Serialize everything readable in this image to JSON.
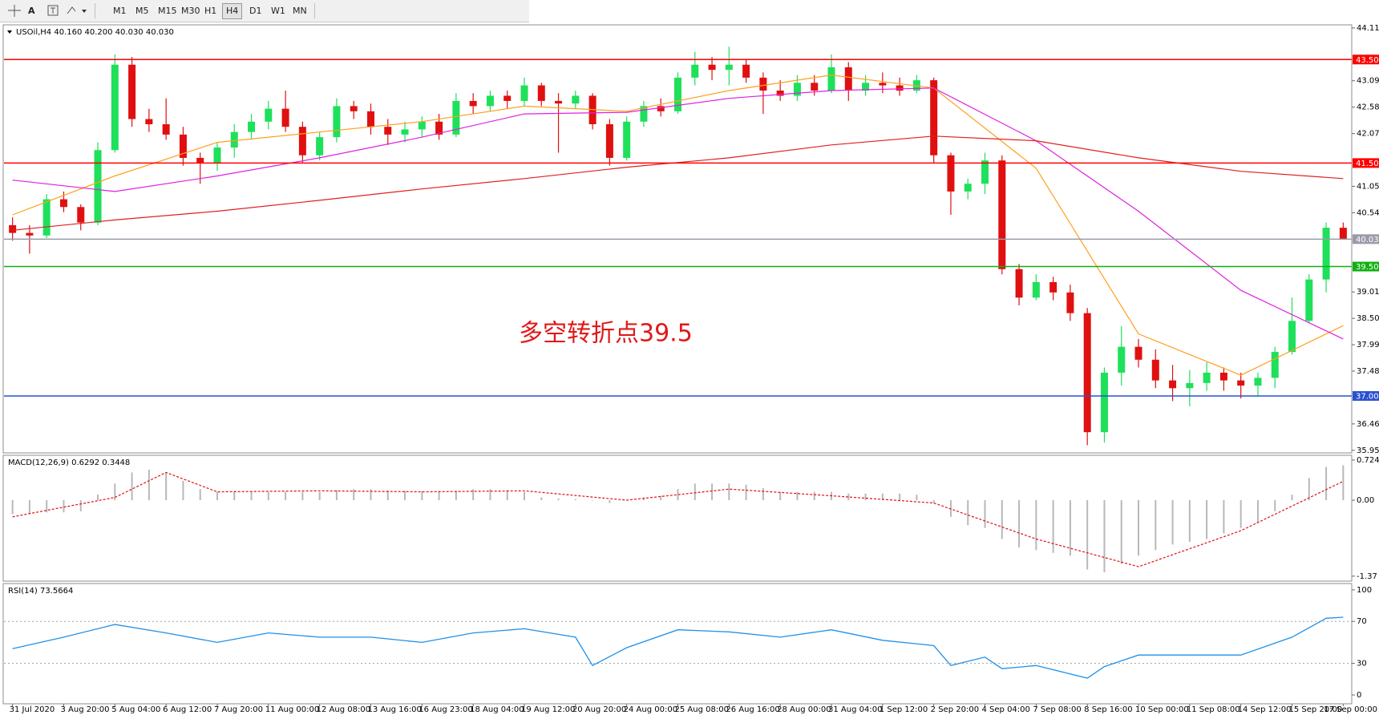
{
  "toolbar": {
    "tools": [
      "A"
    ],
    "timeframes": [
      "M1",
      "M5",
      "M15",
      "M30",
      "H1",
      "H4",
      "D1",
      "W1",
      "MN"
    ],
    "active": "H4"
  },
  "chart_data": [
    {
      "type": "candlestick",
      "title": "USOil,H4 40.160 40.200 40.030 40.030",
      "annotation": "多空转折点39.5",
      "categories": [
        "31 Jul 2020",
        null,
        null,
        "3 Aug 20:00",
        null,
        null,
        "5 Aug 04:00",
        null,
        null,
        "6 Aug 12:00",
        null,
        null,
        "7 Aug 20:00",
        null,
        null,
        "11 Aug 00:00",
        null,
        null,
        "12 Aug 08:00",
        null,
        null,
        "13 Aug 16:00",
        null,
        null,
        "16 Aug 23:00",
        null,
        null,
        "18 Aug 04:00",
        null,
        null,
        "19 Aug 12:00",
        null,
        null,
        "20 Aug 20:00",
        null,
        null,
        "24 Aug 00:00",
        null,
        null,
        "25 Aug 08:00",
        null,
        null,
        "26 Aug 16:00",
        null,
        null,
        "28 Aug 00:00",
        null,
        null,
        "31 Aug 04:00",
        null,
        null,
        "1 Sep 12:00",
        null,
        null,
        "2 Sep 20:00",
        null,
        null,
        "4 Sep 04:00",
        null,
        null,
        "7 Sep 08:00",
        null,
        null,
        "8 Sep 16:00",
        null,
        null,
        "10 Sep 00:00",
        null,
        null,
        "11 Sep 08:00",
        null,
        null,
        "14 Sep 12:00",
        null,
        null,
        "15 Sep 20:00",
        null,
        null,
        "17 Sep 00:00"
      ],
      "open": [
        40.3,
        40.15,
        40.1,
        40.8,
        40.65,
        40.35,
        41.75,
        43.4,
        42.35,
        42.25,
        42.05,
        41.6,
        41.5,
        41.8,
        42.1,
        42.3,
        42.55,
        42.2,
        41.65,
        42.0,
        42.6,
        42.5,
        42.2,
        42.05,
        42.15,
        42.3,
        42.05,
        42.7,
        42.6,
        42.8,
        42.7,
        43.0,
        42.7,
        42.65,
        42.8,
        42.25,
        41.6,
        42.3,
        42.6,
        42.5,
        43.15,
        43.4,
        43.3,
        43.4,
        43.15,
        42.9,
        42.8,
        43.05,
        42.9,
        43.35,
        42.9,
        43.05,
        43.0,
        42.9,
        43.1,
        41.65,
        40.95,
        41.1,
        41.55,
        39.45,
        38.9,
        39.2,
        39.0,
        38.6,
        36.3,
        37.45,
        37.95,
        37.7,
        37.3,
        37.15,
        37.25,
        37.45,
        37.3,
        37.2,
        37.35,
        37.85,
        38.45,
        39.25,
        40.25
      ],
      "high": [
        40.45,
        40.3,
        40.9,
        40.95,
        40.7,
        41.9,
        43.6,
        43.55,
        42.55,
        42.75,
        42.2,
        41.7,
        41.9,
        42.25,
        42.45,
        42.7,
        42.9,
        42.3,
        42.1,
        42.75,
        42.7,
        42.65,
        42.35,
        42.3,
        42.4,
        42.45,
        42.85,
        42.85,
        42.9,
        42.9,
        43.15,
        43.05,
        42.85,
        42.9,
        42.85,
        42.35,
        42.4,
        42.7,
        42.75,
        43.25,
        43.65,
        43.55,
        43.75,
        43.5,
        43.25,
        43.1,
        43.2,
        43.2,
        43.6,
        43.45,
        43.2,
        43.25,
        43.15,
        43.2,
        43.15,
        41.7,
        41.2,
        41.7,
        41.65,
        39.55,
        39.35,
        39.3,
        39.15,
        38.7,
        37.55,
        38.35,
        38.1,
        37.9,
        37.6,
        37.5,
        37.65,
        37.55,
        37.45,
        37.45,
        37.95,
        38.9,
        39.35,
        40.35,
        40.35
      ],
      "low": [
        40.0,
        39.75,
        40.05,
        40.55,
        40.2,
        40.3,
        41.7,
        42.2,
        42.1,
        41.95,
        41.45,
        41.1,
        41.35,
        41.6,
        41.95,
        42.15,
        42.1,
        41.5,
        41.55,
        41.9,
        42.35,
        42.05,
        41.85,
        41.9,
        42.0,
        41.95,
        42.0,
        42.45,
        42.5,
        42.55,
        42.6,
        42.6,
        41.7,
        42.55,
        42.15,
        41.45,
        41.55,
        42.2,
        42.4,
        42.45,
        43.0,
        43.1,
        43.0,
        43.05,
        42.45,
        42.7,
        42.7,
        42.8,
        42.85,
        42.7,
        42.8,
        42.85,
        42.8,
        42.85,
        41.5,
        40.5,
        40.8,
        40.9,
        39.35,
        38.75,
        38.85,
        38.85,
        38.45,
        36.05,
        36.1,
        37.2,
        37.55,
        37.15,
        36.9,
        36.8,
        37.1,
        37.1,
        36.95,
        37.0,
        37.15,
        37.8,
        38.4,
        39.0,
        40.03
      ],
      "close": [
        40.15,
        40.1,
        40.8,
        40.65,
        40.35,
        41.75,
        43.4,
        42.35,
        42.25,
        42.05,
        41.6,
        41.5,
        41.8,
        42.1,
        42.3,
        42.55,
        42.2,
        41.65,
        42.0,
        42.6,
        42.5,
        42.2,
        42.05,
        42.15,
        42.3,
        42.05,
        42.7,
        42.6,
        42.8,
        42.7,
        43.0,
        42.7,
        42.65,
        42.8,
        42.25,
        41.6,
        42.3,
        42.6,
        42.5,
        43.15,
        43.4,
        43.3,
        43.4,
        43.15,
        42.9,
        42.8,
        43.05,
        42.9,
        43.35,
        42.9,
        43.05,
        43.0,
        42.9,
        43.1,
        41.65,
        40.95,
        41.1,
        41.55,
        39.45,
        38.9,
        39.2,
        39.0,
        38.6,
        36.3,
        37.45,
        37.95,
        37.7,
        37.3,
        37.15,
        37.25,
        37.45,
        37.3,
        37.2,
        37.35,
        37.85,
        38.45,
        39.25,
        40.25,
        40.03
      ],
      "up_color": "#1ee05a",
      "down_color": "#e01010",
      "series": [
        {
          "color": "#ffa020",
          "x": [
            0,
            6,
            12,
            18,
            24,
            30,
            36,
            42,
            48,
            54,
            60,
            66,
            72,
            78
          ],
          "values": [
            40.5,
            41.25,
            41.9,
            42.1,
            42.3,
            42.6,
            42.5,
            42.9,
            43.2,
            42.95,
            41.4,
            38.2,
            37.4,
            38.36
          ]
        },
        {
          "color": "#e020e0",
          "x": [
            0,
            6,
            12,
            18,
            24,
            30,
            36,
            42,
            48,
            54,
            60,
            66,
            72,
            78
          ],
          "values": [
            41.17,
            40.95,
            41.25,
            41.6,
            42.0,
            42.45,
            42.48,
            42.75,
            42.9,
            42.95,
            41.93,
            40.57,
            39.04,
            38.1
          ]
        },
        {
          "color": "#e02020",
          "x": [
            0,
            6,
            12,
            18,
            24,
            30,
            36,
            42,
            48,
            54,
            60,
            66,
            72,
            78
          ],
          "values": [
            40.2,
            40.4,
            40.57,
            40.78,
            41.0,
            41.2,
            41.42,
            41.6,
            41.85,
            42.02,
            41.93,
            41.6,
            41.34,
            41.2
          ]
        }
      ],
      "hlines": [
        {
          "value": 43.5,
          "label": "43.50",
          "color": "#ff0000"
        },
        {
          "value": 41.5,
          "label": "41.50",
          "color": "#ff0000"
        },
        {
          "value": 40.03,
          "label": "40.03",
          "color": "#9a9aa8"
        },
        {
          "value": 39.5,
          "label": "39.50",
          "color": "#10b010"
        },
        {
          "value": 37.0,
          "label": "37.00",
          "color": "#2a50d0"
        }
      ],
      "ylim": [
        35.9,
        44.17
      ],
      "yticks": [
        44.11,
        43.09,
        42.58,
        42.07,
        41.05,
        40.54,
        39.01,
        {
          "value": 38.5,
          "label": "38.50"
        },
        37.99,
        37.48,
        36.46,
        35.95
      ]
    },
    {
      "type": "bar",
      "title": "MACD(12,26,9) 0.6292 0.3448",
      "color": "#b8b8b8",
      "values": [
        -0.25,
        -0.25,
        -0.22,
        -0.22,
        -0.2,
        0.1,
        0.3,
        0.5,
        0.55,
        0.5,
        0.35,
        0.2,
        0.15,
        0.15,
        0.15,
        0.15,
        0.15,
        0.15,
        0.15,
        0.18,
        0.2,
        0.2,
        0.18,
        0.17,
        0.16,
        0.15,
        0.17,
        0.2,
        0.2,
        0.18,
        0.15,
        0.05,
        0.03,
        0.02,
        0.0,
        -0.05,
        0.0,
        0.05,
        0.08,
        0.2,
        0.3,
        0.3,
        0.3,
        0.28,
        0.22,
        0.15,
        0.15,
        0.15,
        0.15,
        0.12,
        0.12,
        0.12,
        0.12,
        0.1,
        -0.05,
        -0.3,
        -0.45,
        -0.5,
        -0.7,
        -0.85,
        -0.9,
        -0.95,
        -1.0,
        -1.25,
        -1.3,
        -1.15,
        -1.0,
        -0.9,
        -0.8,
        -0.75,
        -0.7,
        -0.6,
        -0.5,
        -0.4,
        -0.2,
        0.1,
        0.4,
        0.6,
        0.63
      ],
      "series": [
        {
          "color": "#e01010",
          "style": "dotted",
          "x": [
            0,
            6,
            9,
            12,
            18,
            24,
            30,
            36,
            42,
            48,
            54,
            60,
            66,
            72,
            78
          ],
          "values": [
            -0.3,
            0.05,
            0.5,
            0.15,
            0.17,
            0.15,
            0.17,
            0.0,
            0.2,
            0.08,
            -0.05,
            -0.7,
            -1.2,
            -0.55,
            0.34
          ]
        }
      ],
      "ylim": [
        -1.46,
        0.81
      ],
      "yticks": [
        0.724,
        {
          "value": 0,
          "label": "0.00"
        },
        -1.37
      ]
    },
    {
      "type": "line",
      "title": "RSI(14) 73.5664",
      "color": "#2090e8",
      "x": [
        0,
        3,
        6,
        9,
        12,
        15,
        18,
        21,
        24,
        27,
        30,
        33,
        34,
        36,
        39,
        42,
        45,
        48,
        51,
        54,
        55,
        57,
        58,
        60,
        63,
        64,
        66,
        69,
        72,
        75,
        77,
        78
      ],
      "values": [
        44,
        55,
        67,
        59,
        50,
        59,
        55,
        55,
        50,
        59,
        63,
        55,
        28,
        45,
        62,
        60,
        55,
        62,
        52,
        47,
        28,
        36,
        25,
        28,
        16,
        27,
        38,
        38,
        38,
        55,
        73,
        74
      ],
      "levels": [
        70,
        30
      ],
      "ylim": [
        -8.4,
        106
      ],
      "yticks": [
        100,
        70,
        30,
        0
      ]
    }
  ]
}
